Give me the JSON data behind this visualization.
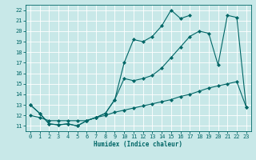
{
  "xlabel": "Humidex (Indice chaleur)",
  "background_color": "#c8e8e8",
  "grid_color": "#ffffff",
  "line_color": "#006666",
  "xlim": [
    -0.5,
    23.5
  ],
  "ylim": [
    10.5,
    22.5
  ],
  "xticks": [
    0,
    1,
    2,
    3,
    4,
    5,
    6,
    7,
    8,
    9,
    10,
    11,
    12,
    13,
    14,
    15,
    16,
    17,
    18,
    19,
    20,
    21,
    22,
    23
  ],
  "yticks": [
    11,
    12,
    13,
    14,
    15,
    16,
    17,
    18,
    19,
    20,
    21,
    22
  ],
  "line1_x": [
    0,
    1,
    2,
    3,
    4,
    5,
    6,
    7,
    8,
    9,
    10,
    11,
    12,
    13,
    14,
    15,
    16,
    17
  ],
  "line1_y": [
    13.0,
    12.2,
    11.2,
    11.1,
    11.2,
    11.0,
    11.5,
    11.8,
    12.2,
    13.5,
    17.0,
    19.2,
    19.0,
    19.5,
    20.5,
    22.0,
    21.2,
    21.5
  ],
  "line2_x": [
    0,
    1,
    2,
    3,
    4,
    5,
    6,
    7,
    8,
    9,
    10,
    11,
    12,
    13,
    14,
    15,
    16,
    17,
    18,
    19,
    20,
    21,
    22,
    23
  ],
  "line2_y": [
    13.0,
    12.2,
    11.2,
    11.1,
    11.2,
    11.0,
    11.5,
    11.8,
    12.2,
    13.5,
    15.5,
    15.3,
    15.5,
    15.8,
    16.5,
    17.5,
    18.5,
    19.5,
    20.0,
    19.8,
    16.8,
    21.5,
    21.3,
    12.8
  ],
  "line3_x": [
    0,
    1,
    2,
    3,
    4,
    5,
    6,
    7,
    8,
    9,
    10,
    11,
    12,
    13,
    14,
    15,
    16,
    17,
    18,
    19,
    20,
    21,
    22,
    23
  ],
  "line3_y": [
    12.0,
    11.8,
    11.5,
    11.5,
    11.5,
    11.5,
    11.5,
    11.8,
    12.0,
    12.3,
    12.5,
    12.7,
    12.9,
    13.1,
    13.3,
    13.5,
    13.8,
    14.0,
    14.3,
    14.6,
    14.8,
    15.0,
    15.2,
    12.8
  ],
  "marker_size": 2.5,
  "linewidth": 0.8
}
